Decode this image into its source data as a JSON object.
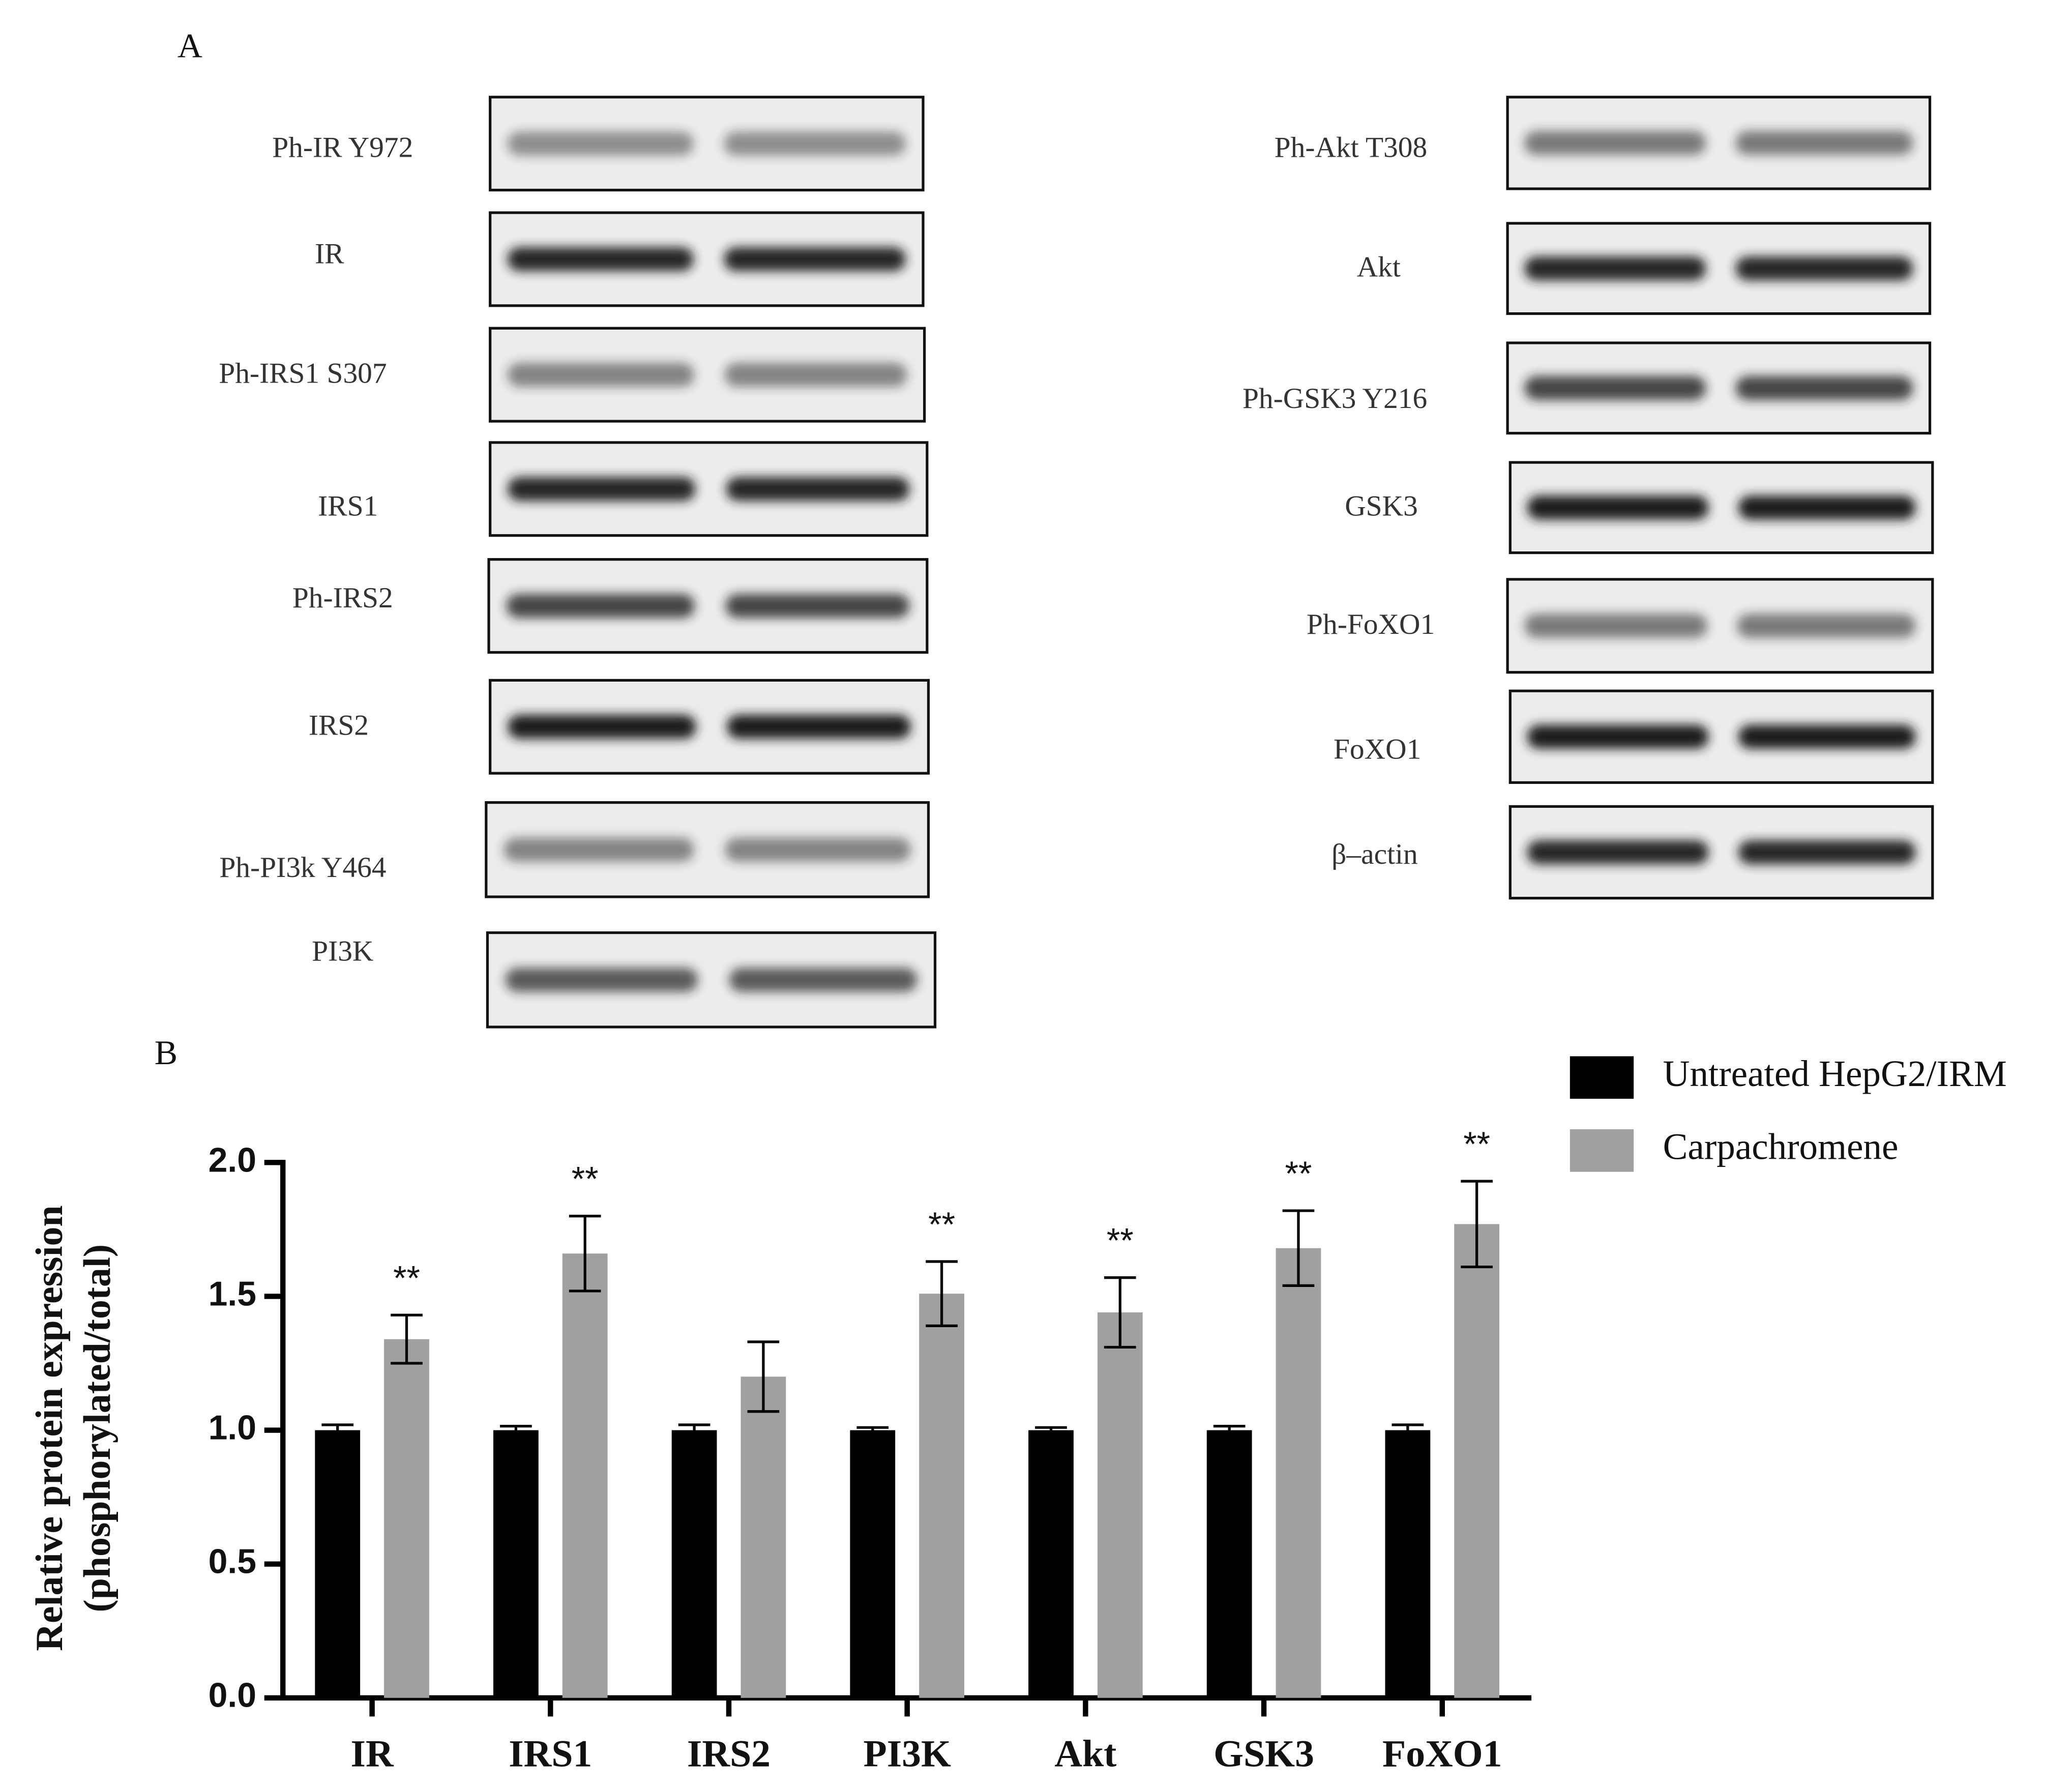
{
  "panel_a": {
    "label": "A",
    "left_blots": [
      "Ph-IR Y972",
      "IR",
      "Ph-IRS1 S307",
      "IRS1",
      "Ph-IRS2",
      "IRS2",
      "Ph-PI3k Y464",
      "PI3K"
    ],
    "right_blots": [
      "Ph-Akt T308",
      "Akt",
      "Ph-GSK3 Y216",
      "GSK3",
      "Ph-FoXO1",
      "FoXO1",
      "β–actin"
    ]
  },
  "chart_data": {
    "type": "bar",
    "panel_label": "B",
    "y_label": [
      "Relative protein expression",
      "(phosphorylated/total)"
    ],
    "categories": [
      "IR",
      "IRS1",
      "IRS2",
      "PI3K",
      "Akt",
      "GSK3",
      "FoXO1"
    ],
    "series": [
      {
        "name": "Untreated HepG2/IRM",
        "color": "#000000",
        "values": [
          1.0,
          1.0,
          1.0,
          1.0,
          1.0,
          1.0,
          1.0
        ],
        "errors": [
          0.02,
          0.015,
          0.02,
          0.01,
          0.01,
          0.015,
          0.02
        ]
      },
      {
        "name": "Carpachromene",
        "color": "#a0a0a0",
        "values": [
          1.34,
          1.66,
          1.2,
          1.51,
          1.44,
          1.68,
          1.77
        ],
        "errors": [
          0.09,
          0.14,
          0.13,
          0.12,
          0.13,
          0.14,
          0.16
        ]
      }
    ],
    "annotations": [
      "**",
      "**",
      null,
      "**",
      "**",
      "**",
      "**"
    ],
    "ylim": [
      0,
      2.0
    ],
    "yticks": [
      {
        "value": 0,
        "label": "0.0"
      },
      {
        "value": 0.5,
        "label": "0.5"
      },
      {
        "value": 1,
        "label": "1.0"
      },
      {
        "value": 1.5,
        "label": "1.5"
      },
      {
        "value": 2,
        "label": "2.0"
      }
    ]
  }
}
